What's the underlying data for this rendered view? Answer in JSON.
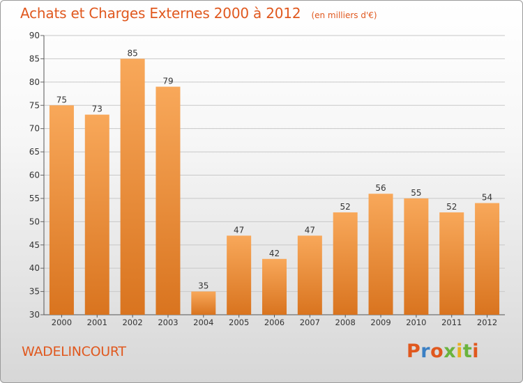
{
  "header": {
    "title": "Achats et Charges Externes 2000 à 2012",
    "subtitle": "(en milliers d'€)"
  },
  "footer": {
    "place": "WADELINCOURT",
    "logo": "Proxiti",
    "logo_colors": [
      "#e0581e",
      "#3a7fc4",
      "#e0581e",
      "#6ab33e",
      "#e8b022",
      "#6ab33e",
      "#e0581e"
    ]
  },
  "colors": {
    "bar_light": "#f8a85a",
    "bar_dark": "#d9741f",
    "text": "#e0581e",
    "grid": "#c8c8c8"
  },
  "chart_data": {
    "type": "bar",
    "categories": [
      "2000",
      "2001",
      "2002",
      "2003",
      "2004",
      "2005",
      "2006",
      "2007",
      "2008",
      "2009",
      "2010",
      "2011",
      "2012"
    ],
    "values": [
      75,
      73,
      85,
      79,
      35,
      47,
      42,
      47,
      52,
      56,
      55,
      52,
      54
    ],
    "data_labels": [
      "75",
      "73",
      "85",
      "79",
      "35",
      "47",
      "42",
      "47",
      "52",
      "56",
      "55",
      "52",
      "54"
    ],
    "title": "Achats et Charges Externes 2000 à 2012",
    "ylim": [
      30,
      90
    ],
    "yticks": [
      30,
      35,
      40,
      45,
      50,
      55,
      60,
      65,
      70,
      75,
      80,
      85,
      90
    ],
    "grid": true,
    "legend": "none"
  }
}
